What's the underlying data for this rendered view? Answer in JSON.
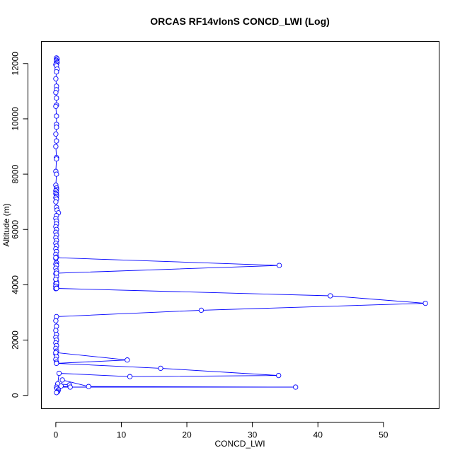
{
  "chart_data": {
    "type": "line",
    "title": "ORCAS RF14vlonS CONCD_LWI (Log)",
    "xlabel": "CONCD_LWI",
    "ylabel": "Altitude (m)",
    "xlim": [
      -2.2,
      58.5
    ],
    "ylim": [
      -480,
      12800
    ],
    "x_ticks": [
      0,
      10,
      20,
      30,
      40,
      50
    ],
    "y_ticks": [
      0,
      2000,
      4000,
      6000,
      8000,
      10000,
      12000
    ],
    "grid": false,
    "legend": "none",
    "color": "#0000ff",
    "marker": "open-circle",
    "series": [
      {
        "x": [
          0.1,
          0.2,
          0.1,
          0.1,
          0.2,
          0.1,
          0.0,
          0.1,
          0.2,
          0.1,
          0.0,
          0.1,
          0.1,
          0.0,
          0.1,
          0.1,
          0.0,
          0.1,
          0.1,
          0.1,
          0.0,
          0.1,
          0.0,
          0.1,
          0.1,
          0.0,
          0.1,
          0.0,
          0.1,
          0.1,
          0.0,
          0.1,
          0.0,
          0.1,
          0.1,
          0.0,
          0.1,
          0.0,
          0.1,
          0.2,
          0.4,
          0.1,
          0.0,
          0.1,
          0.1,
          0.0,
          0.1,
          0.0,
          0.1,
          0.0,
          0.1,
          0.0,
          0.1,
          0.0,
          0.1,
          0.0,
          0.1,
          0.0,
          0.1,
          0.0,
          0.1,
          0.0,
          0.1,
          0.0,
          0.1,
          0.0,
          0.1,
          0.0,
          0.1,
          0.0,
          0.1,
          0.0,
          34.1,
          0.1,
          0.0,
          0.1,
          0.0,
          0.1,
          0.0,
          0.1,
          41.9,
          56.4,
          22.2,
          0.1,
          0.0,
          0.1,
          0.0,
          0.1,
          0.0,
          0.1,
          0.0,
          0.1,
          0.0,
          0.1,
          0.0,
          0.1,
          0.0,
          0.1,
          0.0,
          10.9,
          0.1,
          16.0,
          34.0,
          11.3,
          0.5,
          0.3,
          2.1,
          2.2,
          0.8,
          1.0,
          5.0,
          36.6,
          0.1,
          0.2,
          0.4,
          0.3,
          0.2,
          0.1
        ],
        "y": [
          12200,
          12160,
          12120,
          12080,
          12040,
          12000,
          11960,
          11920,
          11800,
          11700,
          11450,
          11180,
          11050,
          10950,
          10750,
          10500,
          10450,
          10100,
          9800,
          9700,
          9450,
          9200,
          9000,
          8600,
          8550,
          8100,
          8000,
          7600,
          7500,
          7450,
          7400,
          7350,
          7300,
          7250,
          7200,
          7150,
          7100,
          7000,
          6800,
          6700,
          6600,
          6500,
          6400,
          6300,
          6200,
          6100,
          6000,
          5900,
          5800,
          5700,
          5600,
          5500,
          5400,
          5300,
          5200,
          5100,
          5000,
          4950,
          4800,
          4750,
          4700,
          4600,
          4500,
          4400,
          4300,
          4200,
          4100,
          4050,
          4000,
          3950,
          3900,
          4980,
          4700,
          4420,
          4200,
          4050,
          3950,
          3880,
          3860,
          3870,
          3600,
          3330,
          3080,
          2850,
          2700,
          2500,
          2350,
          2200,
          2100,
          2000,
          1900,
          1800,
          1700,
          1600,
          1500,
          1400,
          1300,
          1200,
          1550,
          1280,
          1160,
          980,
          720,
          680,
          800,
          420,
          380,
          300,
          340,
          560,
          320,
          300,
          300,
          250,
          200,
          150,
          120,
          100
        ]
      }
    ]
  }
}
